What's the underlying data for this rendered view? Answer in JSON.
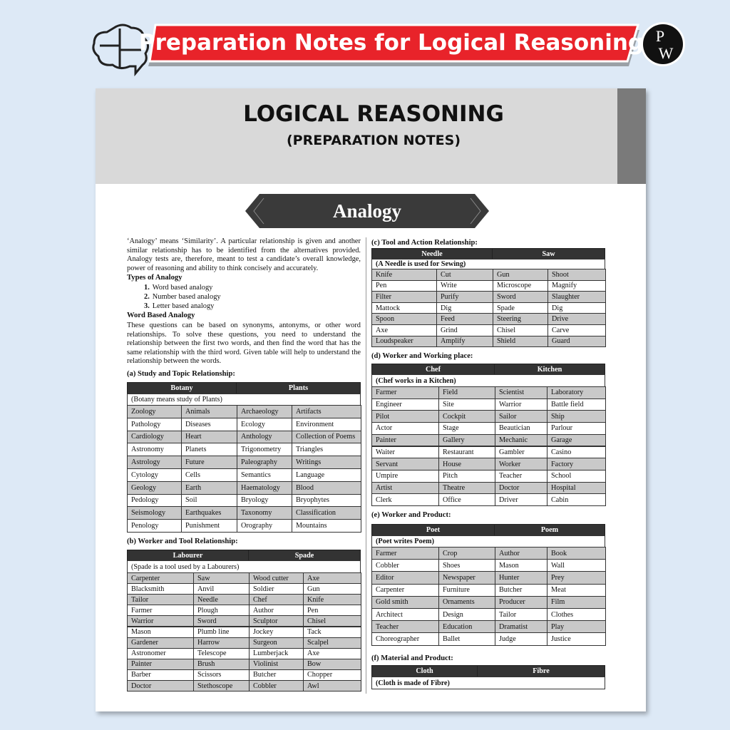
{
  "banner": {
    "title": "Preparation Notes for Logical Reasoning",
    "logo": [
      "P",
      "W"
    ]
  },
  "header": {
    "title": "LOGICAL REASONING",
    "subtitle": "(PREPARATION NOTES)"
  },
  "section": "Analogy",
  "intro": "‘Analogy’ means ‘Similarity’. A particular relationship is given and another similar relationship has to be identified from the alternatives provided. Analogy tests are, therefore, meant to test a candidate’s overall knowledge, power of reasoning and ability to think concisely and accurately.",
  "types_heading": "Types of Analogy",
  "types": [
    {
      "number": "1.",
      "text": "Word based analogy"
    },
    {
      "number": "2.",
      "text": "Number based analogy"
    },
    {
      "number": "3.",
      "text": "Letter based analogy"
    }
  ],
  "word_heading": "Word Based Analogy",
  "word_text": "These questions can be based on synonyms, antonyms, or other word relationships. To solve these questions, you need to understand the relationship between the first two words, and then find the word that has the same relationship with the third word. Given table will help to understand the relationship between the words.",
  "tables": [
    {
      "title": "(a) Study and Topic Relationship:",
      "head": [
        "Botany",
        "Plants"
      ],
      "note": "(Botany means study of Plants)",
      "rows": [
        [
          "Zoology",
          "Animals",
          "Archaeology",
          "Artifacts"
        ],
        [
          "Pathology",
          "Diseases",
          "Ecology",
          "Environment"
        ],
        [
          "Cardiology",
          "Heart",
          "Anthology",
          "Collection of Poems"
        ],
        [
          "Astronomy",
          "Planets",
          "Trigonometry",
          "Triangles"
        ],
        [
          "Astrology",
          "Future",
          "Paleography",
          "Writings"
        ],
        [
          "Cytology",
          "Cells",
          "Semantics",
          "Language"
        ],
        [
          "Geology",
          "Earth",
          "Haematology",
          "Blood"
        ],
        [
          "Pedology",
          "Soil",
          "Bryology",
          "Bryophytes"
        ],
        [
          "Seismology",
          "Earthquakes",
          "Taxonomy",
          "Classification"
        ],
        [
          "Penology",
          "Punishment",
          "Orography",
          "Mountains"
        ]
      ]
    },
    {
      "title": "(b) Worker and Tool Relationship:",
      "head": [
        "Labourer",
        "Spade"
      ],
      "note": "(Spade is a tool used by a Labourers)",
      "rows": [
        [
          "Carpenter",
          "Saw",
          "Wood cutter",
          "Axe"
        ],
        [
          "Blacksmith",
          "Anvil",
          "Soldier",
          "Gun"
        ],
        [
          "Tailor",
          "Needle",
          "Chef",
          "Knife"
        ],
        [
          "Farmer",
          "Plough",
          "Author",
          "Pen"
        ],
        [
          "Warrior",
          "Sword",
          "Sculptor",
          "Chisel"
        ],
        [
          "Mason",
          "Plumb line",
          "Jockey",
          "Tack"
        ],
        [
          "Gardener",
          "Harrow",
          "Surgeon",
          "Scalpel"
        ],
        [
          "Astronomer",
          "Telescope",
          "Lumberjack",
          "Axe"
        ],
        [
          "Painter",
          "Brush",
          "Violinist",
          "Bow"
        ],
        [
          "Barber",
          "Scissors",
          "Butcher",
          "Chopper"
        ],
        [
          "Doctor",
          "Stethoscope",
          "Cobbler",
          "Awl"
        ]
      ]
    },
    {
      "title": "(c) Tool and Action Relationship:",
      "head": [
        "Needle",
        "Saw"
      ],
      "note": "(A Needle is used for Sewing)",
      "rows": [
        [
          "Knife",
          "Cut",
          "Gun",
          "Shoot"
        ],
        [
          "Pen",
          "Write",
          "Microscope",
          "Magnify"
        ],
        [
          "Filter",
          "Purify",
          "Sword",
          "Slaughter"
        ],
        [
          "Mattock",
          "Dig",
          "Spade",
          "Dig"
        ],
        [
          "Spoon",
          "Feed",
          "Steering",
          "Drive"
        ],
        [
          "Axe",
          "Grind",
          "Chisel",
          "Carve"
        ],
        [
          "Loudspeaker",
          "Amplify",
          "Shield",
          "Guard"
        ]
      ]
    },
    {
      "title": "(d) Worker and Working place:",
      "head": [
        "Chef",
        "Kitchen"
      ],
      "note": "(Chef works in a Kitchen)",
      "rows": [
        [
          "Farmer",
          "Field",
          "Scientist",
          "Laboratory"
        ],
        [
          "Engineer",
          "Site",
          "Warrior",
          "Battle field"
        ],
        [
          "Pilot",
          "Cockpit",
          "Sailor",
          "Ship"
        ],
        [
          "Actor",
          "Stage",
          "Beautician",
          "Parlour"
        ],
        [
          "Painter",
          "Gallery",
          "Mechanic",
          "Garage"
        ],
        [
          "Waiter",
          "Restaurant",
          "Gambler",
          "Casino"
        ],
        [
          "Servant",
          "House",
          "Worker",
          "Factory"
        ],
        [
          "Umpire",
          "Pitch",
          "Teacher",
          "School"
        ],
        [
          "Artist",
          "Theatre",
          "Doctor",
          "Hospital"
        ],
        [
          "Clerk",
          "Office",
          "Driver",
          "Cabin"
        ]
      ]
    },
    {
      "title": "(e) Worker and Product:",
      "head": [
        "Poet",
        "Poem"
      ],
      "note": "(Poet writes Poem)",
      "rows": [
        [
          "Farmer",
          "Crop",
          "Author",
          "Book"
        ],
        [
          "Cobbler",
          "Shoes",
          "Mason",
          "Wall"
        ],
        [
          "Editor",
          "Newspaper",
          "Hunter",
          "Prey"
        ],
        [
          "Carpenter",
          "Furniture",
          "Butcher",
          "Meat"
        ],
        [
          "Gold smith",
          "Ornaments",
          "Producer",
          "Film"
        ],
        [
          "Architect",
          "Design",
          "Tailor",
          "Clothes"
        ],
        [
          "Teacher",
          "Education",
          "Dramatist",
          "Play"
        ],
        [
          "Choreographer",
          "Ballet",
          "Judge",
          "Justice"
        ]
      ]
    },
    {
      "title": "(f) Material and Product:",
      "head": [
        "Cloth",
        "Fibre"
      ],
      "note": "(Cloth is made of Fibre)",
      "rows": []
    }
  ]
}
